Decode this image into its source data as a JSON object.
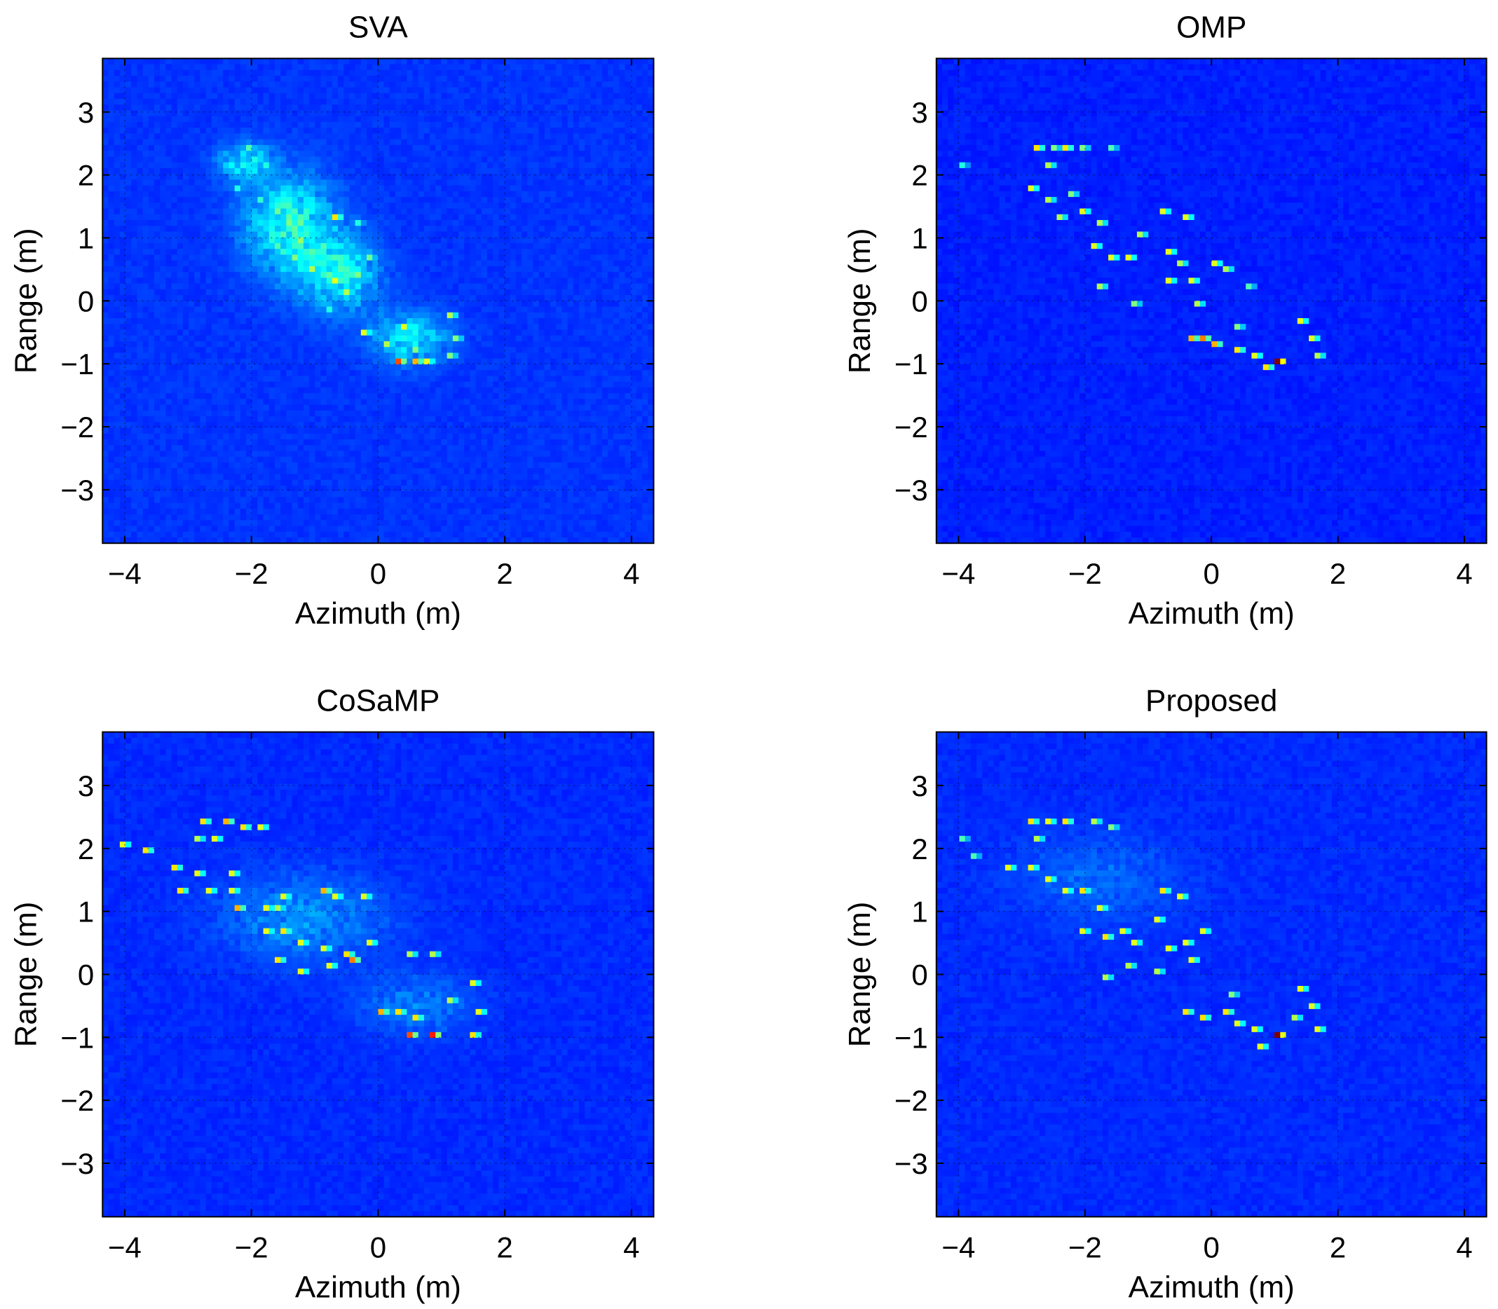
{
  "chart_data": [
    {
      "type": "heatmap",
      "title": "SVA",
      "xlabel": "Azimuth (m)",
      "ylabel": "Range (m)",
      "xlim": [
        -4.35,
        4.35
      ],
      "ylim": [
        -3.85,
        3.85
      ],
      "xticks": [
        -4,
        -2,
        0,
        2,
        4
      ],
      "yticks": [
        -3,
        -2,
        -1,
        0,
        1,
        2,
        3
      ],
      "xtick_labels": [
        "−4",
        "−2",
        "0",
        "2",
        "4"
      ],
      "ytick_labels": [
        "−3",
        "−2",
        "−1",
        "0",
        "1",
        "2",
        "3"
      ],
      "grid": true,
      "colormap": "jet",
      "background_level": 0.06,
      "blobs": [
        {
          "x": -1.4,
          "y": 1.2,
          "sx": 0.7,
          "sy": 0.8,
          "level": 0.22
        },
        {
          "x": -0.6,
          "y": 0.4,
          "sx": 0.6,
          "sy": 0.6,
          "level": 0.2
        },
        {
          "x": 0.5,
          "y": -0.6,
          "sx": 0.6,
          "sy": 0.4,
          "level": 0.18
        },
        {
          "x": -2.1,
          "y": 2.2,
          "sx": 0.4,
          "sy": 0.3,
          "level": 0.18
        }
      ],
      "points": [
        {
          "x": -2.0,
          "y": 2.4,
          "v": 0.35
        },
        {
          "x": -1.8,
          "y": 2.2,
          "v": 0.3
        },
        {
          "x": -2.2,
          "y": 1.8,
          "v": 0.3
        },
        {
          "x": -1.9,
          "y": 1.6,
          "v": 0.32
        },
        {
          "x": -1.6,
          "y": 1.4,
          "v": 0.38
        },
        {
          "x": -1.4,
          "y": 1.2,
          "v": 0.4
        },
        {
          "x": -1.2,
          "y": 1.0,
          "v": 0.42
        },
        {
          "x": -0.9,
          "y": 0.9,
          "v": 0.35
        },
        {
          "x": -0.65,
          "y": 1.35,
          "v": 0.55
        },
        {
          "x": -0.3,
          "y": 1.2,
          "v": 0.3
        },
        {
          "x": -1.0,
          "y": 0.5,
          "v": 0.45
        },
        {
          "x": -0.7,
          "y": 0.3,
          "v": 0.5
        },
        {
          "x": -0.5,
          "y": 0.1,
          "v": 0.45
        },
        {
          "x": -0.3,
          "y": 0.45,
          "v": 0.4
        },
        {
          "x": -0.1,
          "y": 0.7,
          "v": 0.38
        },
        {
          "x": -1.3,
          "y": 0.7,
          "v": 0.4
        },
        {
          "x": -1.6,
          "y": 0.9,
          "v": 0.35
        },
        {
          "x": -0.2,
          "y": -0.5,
          "v": 0.5
        },
        {
          "x": 0.1,
          "y": -0.7,
          "v": 0.45
        },
        {
          "x": 0.4,
          "y": -0.4,
          "v": 0.5
        },
        {
          "x": 0.6,
          "y": -0.8,
          "v": 0.4
        },
        {
          "x": 0.35,
          "y": -1.0,
          "v": 0.7
        },
        {
          "x": 0.55,
          "y": -1.0,
          "v": 0.6
        },
        {
          "x": 0.8,
          "y": -0.95,
          "v": 0.5
        },
        {
          "x": 1.1,
          "y": -0.2,
          "v": 0.45
        },
        {
          "x": 1.2,
          "y": -0.6,
          "v": 0.4
        },
        {
          "x": 1.1,
          "y": -0.9,
          "v": 0.4
        },
        {
          "x": -0.8,
          "y": -0.1,
          "v": 0.3
        }
      ]
    },
    {
      "type": "heatmap",
      "title": "OMP",
      "xlabel": "Azimuth (m)",
      "ylabel": "Range (m)",
      "xlim": [
        -4.35,
        4.35
      ],
      "ylim": [
        -3.85,
        3.85
      ],
      "xticks": [
        -4,
        -2,
        0,
        2,
        4
      ],
      "yticks": [
        -3,
        -2,
        -1,
        0,
        1,
        2,
        3
      ],
      "xtick_labels": [
        "−4",
        "−2",
        "0",
        "2",
        "4"
      ],
      "ytick_labels": [
        "−3",
        "−2",
        "−1",
        "0",
        "1",
        "2",
        "3"
      ],
      "grid": true,
      "colormap": "jet",
      "background_level": 0.04,
      "blobs": [],
      "points": [
        {
          "x": -3.95,
          "y": 2.15,
          "v": 0.3
        },
        {
          "x": -2.8,
          "y": 2.45,
          "v": 0.55
        },
        {
          "x": -2.5,
          "y": 2.4,
          "v": 0.4
        },
        {
          "x": -2.3,
          "y": 2.45,
          "v": 0.55
        },
        {
          "x": -2.0,
          "y": 2.4,
          "v": 0.4
        },
        {
          "x": -1.6,
          "y": 2.4,
          "v": 0.35
        },
        {
          "x": -2.6,
          "y": 2.2,
          "v": 0.45
        },
        {
          "x": -2.9,
          "y": 1.75,
          "v": 0.5
        },
        {
          "x": -2.6,
          "y": 1.65,
          "v": 0.45
        },
        {
          "x": -2.2,
          "y": 1.7,
          "v": 0.4
        },
        {
          "x": -2.4,
          "y": 1.3,
          "v": 0.45
        },
        {
          "x": -2.0,
          "y": 1.4,
          "v": 0.5
        },
        {
          "x": -1.8,
          "y": 1.2,
          "v": 0.45
        },
        {
          "x": -1.9,
          "y": 0.9,
          "v": 0.5
        },
        {
          "x": -1.6,
          "y": 0.7,
          "v": 0.5
        },
        {
          "x": -1.3,
          "y": 0.7,
          "v": 0.5
        },
        {
          "x": -1.1,
          "y": 1.1,
          "v": 0.45
        },
        {
          "x": -0.8,
          "y": 1.4,
          "v": 0.5
        },
        {
          "x": -0.7,
          "y": 0.8,
          "v": 0.5
        },
        {
          "x": -0.45,
          "y": 1.35,
          "v": 0.5
        },
        {
          "x": -0.5,
          "y": 0.6,
          "v": 0.45
        },
        {
          "x": -0.7,
          "y": 0.3,
          "v": 0.5
        },
        {
          "x": -0.3,
          "y": 0.3,
          "v": 0.5
        },
        {
          "x": 0.0,
          "y": 0.6,
          "v": 0.5
        },
        {
          "x": 0.2,
          "y": 0.55,
          "v": 0.45
        },
        {
          "x": -1.2,
          "y": 0.0,
          "v": 0.4
        },
        {
          "x": -1.8,
          "y": 0.2,
          "v": 0.45
        },
        {
          "x": -0.3,
          "y": -0.6,
          "v": 0.6
        },
        {
          "x": -0.1,
          "y": -0.55,
          "v": 0.65
        },
        {
          "x": 0.05,
          "y": -0.7,
          "v": 0.6
        },
        {
          "x": 0.4,
          "y": -0.8,
          "v": 0.55
        },
        {
          "x": 0.7,
          "y": -0.9,
          "v": 0.5
        },
        {
          "x": 1.05,
          "y": -1.0,
          "v": 0.95
        },
        {
          "x": 0.85,
          "y": -1.05,
          "v": 0.55
        },
        {
          "x": 1.4,
          "y": -0.3,
          "v": 0.5
        },
        {
          "x": 1.6,
          "y": -0.6,
          "v": 0.5
        },
        {
          "x": 1.65,
          "y": -0.9,
          "v": 0.45
        },
        {
          "x": 0.4,
          "y": -0.4,
          "v": 0.4
        },
        {
          "x": -0.2,
          "y": 0.0,
          "v": 0.45
        },
        {
          "x": 0.6,
          "y": 0.2,
          "v": 0.35
        }
      ]
    },
    {
      "type": "heatmap",
      "title": "CoSaMP",
      "xlabel": "Azimuth (m)",
      "ylabel": "Range (m)",
      "xlim": [
        -4.35,
        4.35
      ],
      "ylim": [
        -3.85,
        3.85
      ],
      "xticks": [
        -4,
        -2,
        0,
        2,
        4
      ],
      "yticks": [
        -3,
        -2,
        -1,
        0,
        1,
        2,
        3
      ],
      "xtick_labels": [
        "−4",
        "−2",
        "0",
        "2",
        "4"
      ],
      "ytick_labels": [
        "−3",
        "−2",
        "−1",
        "0",
        "1",
        "2",
        "3"
      ],
      "grid": true,
      "colormap": "jet",
      "background_level": 0.05,
      "blobs": [
        {
          "x": -1.2,
          "y": 0.9,
          "sx": 1.3,
          "sy": 0.7,
          "level": 0.1
        },
        {
          "x": 0.6,
          "y": -0.5,
          "sx": 0.9,
          "sy": 0.5,
          "level": 0.08
        }
      ],
      "points": [
        {
          "x": -4.0,
          "y": 2.1,
          "v": 0.5
        },
        {
          "x": -3.7,
          "y": 1.95,
          "v": 0.55
        },
        {
          "x": -2.8,
          "y": 2.4,
          "v": 0.55
        },
        {
          "x": -2.4,
          "y": 2.4,
          "v": 0.6
        },
        {
          "x": -2.1,
          "y": 2.35,
          "v": 0.55
        },
        {
          "x": -1.9,
          "y": 2.35,
          "v": 0.5
        },
        {
          "x": -2.9,
          "y": 2.15,
          "v": 0.45
        },
        {
          "x": -2.6,
          "y": 2.15,
          "v": 0.5
        },
        {
          "x": -3.2,
          "y": 1.7,
          "v": 0.55
        },
        {
          "x": -2.9,
          "y": 1.65,
          "v": 0.5
        },
        {
          "x": -2.3,
          "y": 1.65,
          "v": 0.5
        },
        {
          "x": -3.1,
          "y": 1.3,
          "v": 0.55
        },
        {
          "x": -2.7,
          "y": 1.3,
          "v": 0.5
        },
        {
          "x": -2.3,
          "y": 1.3,
          "v": 0.5
        },
        {
          "x": -2.2,
          "y": 1.05,
          "v": 0.6
        },
        {
          "x": -1.8,
          "y": 1.1,
          "v": 0.5
        },
        {
          "x": -1.5,
          "y": 1.2,
          "v": 0.5
        },
        {
          "x": -0.9,
          "y": 1.35,
          "v": 0.6
        },
        {
          "x": -0.7,
          "y": 1.2,
          "v": 0.5
        },
        {
          "x": -0.25,
          "y": 1.2,
          "v": 0.5
        },
        {
          "x": -1.8,
          "y": 0.7,
          "v": 0.5
        },
        {
          "x": -1.5,
          "y": 0.65,
          "v": 0.55
        },
        {
          "x": -1.2,
          "y": 0.55,
          "v": 0.5
        },
        {
          "x": -0.85,
          "y": 0.4,
          "v": 0.5
        },
        {
          "x": -0.5,
          "y": 0.35,
          "v": 0.55
        },
        {
          "x": -0.1,
          "y": 0.55,
          "v": 0.5
        },
        {
          "x": -1.6,
          "y": 0.2,
          "v": 0.55
        },
        {
          "x": -1.2,
          "y": 0.05,
          "v": 0.5
        },
        {
          "x": -0.8,
          "y": 0.1,
          "v": 0.5
        },
        {
          "x": -0.4,
          "y": 0.25,
          "v": 0.65
        },
        {
          "x": 0.5,
          "y": 0.3,
          "v": 0.45
        },
        {
          "x": 0.9,
          "y": 0.3,
          "v": 0.45
        },
        {
          "x": 1.5,
          "y": -0.1,
          "v": 0.5
        },
        {
          "x": 1.6,
          "y": -0.6,
          "v": 0.5
        },
        {
          "x": 1.5,
          "y": -0.95,
          "v": 0.55
        },
        {
          "x": 0.0,
          "y": -0.6,
          "v": 0.6
        },
        {
          "x": 0.3,
          "y": -0.55,
          "v": 0.55
        },
        {
          "x": 0.6,
          "y": -0.7,
          "v": 0.55
        },
        {
          "x": 0.5,
          "y": -1.0,
          "v": 0.7
        },
        {
          "x": 0.85,
          "y": -1.0,
          "v": 0.75
        },
        {
          "x": 1.1,
          "y": -0.4,
          "v": 0.45
        },
        {
          "x": -1.6,
          "y": 1.1,
          "v": 0.45
        }
      ]
    },
    {
      "type": "heatmap",
      "title": "Proposed",
      "xlabel": "Azimuth (m)",
      "ylabel": "Range (m)",
      "xlim": [
        -4.35,
        4.35
      ],
      "ylim": [
        -3.85,
        3.85
      ],
      "xticks": [
        -4,
        -2,
        0,
        2,
        4
      ],
      "yticks": [
        -3,
        -2,
        -1,
        0,
        1,
        2,
        3
      ],
      "xtick_labels": [
        "−4",
        "−2",
        "0",
        "2",
        "4"
      ],
      "ytick_labels": [
        "−3",
        "−2",
        "−1",
        "0",
        "1",
        "2",
        "3"
      ],
      "grid": true,
      "colormap": "jet",
      "background_level": 0.05,
      "blobs": [
        {
          "x": -1.8,
          "y": 1.5,
          "sx": 1.3,
          "sy": 0.7,
          "level": 0.06
        }
      ],
      "points": [
        {
          "x": -3.95,
          "y": 2.15,
          "v": 0.35
        },
        {
          "x": -3.75,
          "y": 1.9,
          "v": 0.35
        },
        {
          "x": -2.9,
          "y": 2.4,
          "v": 0.55
        },
        {
          "x": -2.55,
          "y": 2.4,
          "v": 0.5
        },
        {
          "x": -2.3,
          "y": 2.4,
          "v": 0.55
        },
        {
          "x": -1.9,
          "y": 2.4,
          "v": 0.45
        },
        {
          "x": -1.6,
          "y": 2.35,
          "v": 0.4
        },
        {
          "x": -2.8,
          "y": 2.15,
          "v": 0.45
        },
        {
          "x": -3.2,
          "y": 1.7,
          "v": 0.5
        },
        {
          "x": -2.9,
          "y": 1.7,
          "v": 0.5
        },
        {
          "x": -2.6,
          "y": 1.5,
          "v": 0.5
        },
        {
          "x": -2.3,
          "y": 1.3,
          "v": 0.5
        },
        {
          "x": -2.0,
          "y": 1.3,
          "v": 0.55
        },
        {
          "x": -1.8,
          "y": 1.1,
          "v": 0.5
        },
        {
          "x": -2.0,
          "y": 0.7,
          "v": 0.5
        },
        {
          "x": -1.7,
          "y": 0.6,
          "v": 0.55
        },
        {
          "x": -1.4,
          "y": 0.7,
          "v": 0.5
        },
        {
          "x": -1.2,
          "y": 0.5,
          "v": 0.5
        },
        {
          "x": -0.8,
          "y": 1.3,
          "v": 0.55
        },
        {
          "x": -0.5,
          "y": 1.2,
          "v": 0.5
        },
        {
          "x": -0.9,
          "y": 0.9,
          "v": 0.5
        },
        {
          "x": -0.7,
          "y": 0.45,
          "v": 0.5
        },
        {
          "x": -0.4,
          "y": 0.5,
          "v": 0.5
        },
        {
          "x": -0.3,
          "y": 0.2,
          "v": 0.5
        },
        {
          "x": -0.1,
          "y": 0.7,
          "v": 0.5
        },
        {
          "x": -1.3,
          "y": 0.1,
          "v": 0.45
        },
        {
          "x": -1.7,
          "y": 0.0,
          "v": 0.45
        },
        {
          "x": -0.9,
          "y": 0.05,
          "v": 0.45
        },
        {
          "x": -0.4,
          "y": -0.6,
          "v": 0.55
        },
        {
          "x": -0.1,
          "y": -0.65,
          "v": 0.55
        },
        {
          "x": 0.2,
          "y": -0.6,
          "v": 0.55
        },
        {
          "x": 0.4,
          "y": -0.8,
          "v": 0.5
        },
        {
          "x": 0.7,
          "y": -0.9,
          "v": 0.5
        },
        {
          "x": 1.0,
          "y": -0.95,
          "v": 0.9
        },
        {
          "x": 0.8,
          "y": -1.1,
          "v": 0.5
        },
        {
          "x": 1.4,
          "y": -0.2,
          "v": 0.5
        },
        {
          "x": 1.6,
          "y": -0.5,
          "v": 0.5
        },
        {
          "x": 1.65,
          "y": -0.9,
          "v": 0.5
        },
        {
          "x": 1.35,
          "y": -0.7,
          "v": 0.45
        },
        {
          "x": 0.3,
          "y": -0.3,
          "v": 0.4
        }
      ]
    }
  ]
}
